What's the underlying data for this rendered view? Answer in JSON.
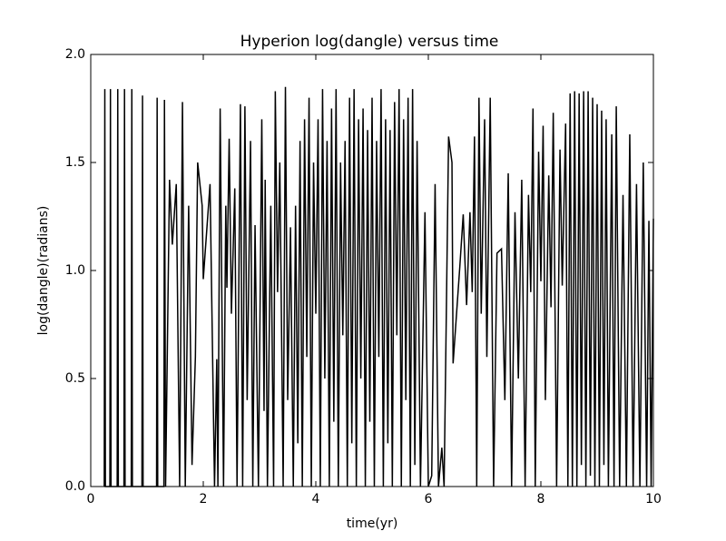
{
  "chart_data": {
    "type": "line",
    "title": "Hyperion log(dangle) versus time",
    "xlabel": "time(yr)",
    "ylabel": "log(dangle)(radians)",
    "xlim": [
      0,
      10
    ],
    "ylim": [
      0,
      2.0
    ],
    "xticks": [
      0,
      2,
      4,
      6,
      8,
      10
    ],
    "yticks": [
      {
        "value": 0,
        "label": "0.0"
      },
      {
        "value": 0.5,
        "label": "0.5"
      },
      {
        "value": 1,
        "label": "1.0"
      },
      {
        "value": 1.5,
        "label": "1.5"
      },
      {
        "value": 2,
        "label": "2.0"
      }
    ],
    "grid": false,
    "series": [
      {
        "color": "#000000",
        "x": [
          0.24,
          0.25,
          0.26,
          0.34,
          0.35,
          0.36,
          0.47,
          0.48,
          0.49,
          0.59,
          0.6,
          0.61,
          0.72,
          0.73,
          0.74,
          0.91,
          0.92,
          0.93,
          1.17,
          1.18,
          1.19,
          1.3,
          1.31,
          1.33,
          1.4,
          1.45,
          1.52,
          1.58,
          1.63,
          1.68,
          1.74,
          1.8,
          1.86,
          1.9,
          1.98,
          2.0,
          2.12,
          2.2,
          2.24,
          2.26,
          2.3,
          2.36,
          2.4,
          2.42,
          2.46,
          2.5,
          2.56,
          2.6,
          2.66,
          2.7,
          2.74,
          2.78,
          2.84,
          2.88,
          2.92,
          2.98,
          3.04,
          3.08,
          3.1,
          3.14,
          3.2,
          3.25,
          3.28,
          3.32,
          3.36,
          3.42,
          3.46,
          3.5,
          3.55,
          3.6,
          3.64,
          3.68,
          3.72,
          3.76,
          3.8,
          3.84,
          3.88,
          3.92,
          3.96,
          4.0,
          4.04,
          4.08,
          4.12,
          4.16,
          4.2,
          4.24,
          4.28,
          4.32,
          4.36,
          4.4,
          4.44,
          4.48,
          4.52,
          4.56,
          4.6,
          4.64,
          4.68,
          4.72,
          4.76,
          4.8,
          4.84,
          4.88,
          4.92,
          4.96,
          5.0,
          5.04,
          5.08,
          5.12,
          5.16,
          5.2,
          5.24,
          5.28,
          5.32,
          5.36,
          5.4,
          5.44,
          5.48,
          5.52,
          5.56,
          5.6,
          5.64,
          5.68,
          5.72,
          5.76,
          5.8,
          5.86,
          5.94,
          6.0,
          6.06,
          6.12,
          6.18,
          6.24,
          6.28,
          6.36,
          6.42,
          6.44,
          6.56,
          6.62,
          6.68,
          6.74,
          6.78,
          6.82,
          6.86,
          6.9,
          6.94,
          7.0,
          7.04,
          7.1,
          7.16,
          7.22,
          7.3,
          7.36,
          7.42,
          7.48,
          7.54,
          7.6,
          7.66,
          7.72,
          7.78,
          7.82,
          7.86,
          7.9,
          7.96,
          8.0,
          8.04,
          8.08,
          8.14,
          8.18,
          8.22,
          8.28,
          8.34,
          8.38,
          8.44,
          8.48,
          8.52,
          8.56,
          8.6,
          8.64,
          8.68,
          8.72,
          8.76,
          8.8,
          8.84,
          8.88,
          8.92,
          8.96,
          9.0,
          9.04,
          9.08,
          9.12,
          9.16,
          9.2,
          9.26,
          9.3,
          9.34,
          9.4,
          9.46,
          9.52,
          9.58,
          9.64,
          9.7,
          9.76,
          9.82,
          9.88,
          9.92,
          9.96,
          10.0
        ],
        "values": [
          0,
          1.84,
          0,
          0,
          1.84,
          0,
          0,
          1.84,
          0,
          0,
          1.84,
          0,
          0,
          1.84,
          0,
          0,
          1.81,
          0,
          0,
          1.8,
          0,
          0,
          1.79,
          0,
          1.42,
          1.12,
          1.4,
          0,
          1.78,
          0,
          1.3,
          0.1,
          0.6,
          1.5,
          1.3,
          0.96,
          1.4,
          0,
          0.59,
          0,
          1.75,
          0,
          1.3,
          0.92,
          1.61,
          0.8,
          1.38,
          0,
          1.77,
          0,
          1.76,
          0.4,
          1.6,
          0,
          1.21,
          0,
          1.7,
          0.35,
          1.42,
          0,
          1.3,
          0,
          1.83,
          0.9,
          1.5,
          0,
          1.85,
          0.4,
          1.2,
          0,
          1.3,
          0.2,
          1.6,
          0,
          1.7,
          0.6,
          1.8,
          0,
          1.5,
          0.8,
          1.7,
          0,
          1.84,
          0.5,
          1.6,
          0,
          1.75,
          0.3,
          1.84,
          0,
          1.5,
          0.7,
          1.6,
          0,
          1.8,
          0.2,
          1.84,
          0,
          1.7,
          0.5,
          1.75,
          0,
          1.65,
          0.3,
          1.8,
          0,
          1.6,
          0.6,
          1.84,
          0,
          1.7,
          0.2,
          1.65,
          0,
          1.78,
          0.7,
          1.84,
          0,
          1.7,
          0.4,
          1.8,
          0,
          1.84,
          0.1,
          1.6,
          0,
          1.27,
          0,
          0.05,
          1.4,
          0,
          0.18,
          0,
          1.62,
          1.5,
          0.57,
          1.02,
          1.26,
          0.84,
          1.27,
          0.9,
          1.62,
          0,
          1.8,
          0.8,
          1.7,
          0.6,
          1.8,
          0,
          1.08,
          1.1,
          0.4,
          1.45,
          0,
          1.27,
          0.5,
          1.42,
          0,
          1.35,
          0.9,
          1.75,
          0,
          1.55,
          0.95,
          1.67,
          0.4,
          1.44,
          0.83,
          1.73,
          0,
          1.56,
          0.93,
          1.68,
          0,
          1.82,
          0,
          1.83,
          0,
          1.82,
          0.1,
          1.83,
          0,
          1.83,
          0.05,
          1.8,
          0,
          1.77,
          0,
          1.74,
          0.1,
          1.7,
          0,
          1.63,
          0,
          1.76,
          0,
          1.35,
          0,
          1.63,
          0,
          1.4,
          0,
          1.5,
          0,
          1.23,
          0,
          1.24
        ]
      }
    ]
  }
}
